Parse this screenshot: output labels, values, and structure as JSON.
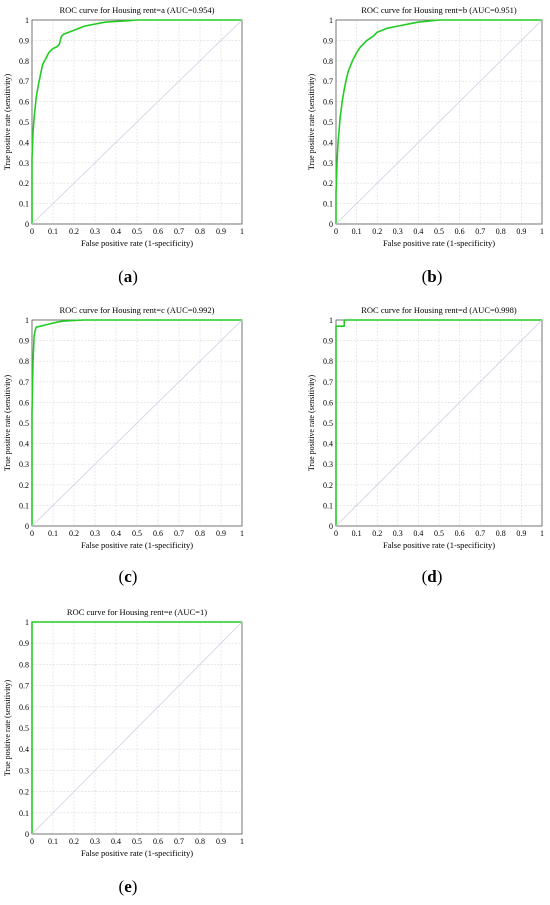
{
  "panels": [
    {
      "caption_open": "(",
      "caption_letter": "a",
      "caption_close": ")"
    },
    {
      "caption_open": "(",
      "caption_letter": "b",
      "caption_close": ")"
    },
    {
      "caption_open": "(",
      "caption_letter": "c",
      "caption_close": ")"
    },
    {
      "caption_open": "(",
      "caption_letter": "d",
      "caption_close": ")"
    },
    {
      "caption_open": "(",
      "caption_letter": "e",
      "caption_close": ")"
    }
  ],
  "colors": {
    "curve": "#22cc22",
    "diagonal": "#cfcfe6",
    "grid": "#d9d9d9",
    "axis": "#555555"
  },
  "chart_data": [
    {
      "type": "line",
      "title": "ROC curve for Housing rent=a (AUC=0.954)",
      "xlabel": "False positive rate (1-specificity)",
      "ylabel": "True positive rate (sensitivity)",
      "xlim": [
        0,
        1
      ],
      "ylim": [
        0,
        1
      ],
      "grid": true,
      "ticks": [
        "0",
        "0.1",
        "0.2",
        "0.3",
        "0.4",
        "0.5",
        "0.6",
        "0.7",
        "0.8",
        "0.9",
        "1"
      ],
      "series": [
        {
          "x": [
            0,
            0,
            0.005,
            0.01,
            0.015,
            0.02,
            0.03,
            0.04,
            0.05,
            0.06,
            0.08,
            0.1,
            0.12,
            0.13,
            0.14,
            0.15,
            0.2,
            0.25,
            0.3,
            0.35,
            0.4,
            0.45,
            0.5,
            1
          ],
          "y": [
            0,
            0.32,
            0.45,
            0.52,
            0.57,
            0.62,
            0.68,
            0.73,
            0.78,
            0.8,
            0.84,
            0.86,
            0.87,
            0.88,
            0.92,
            0.93,
            0.95,
            0.97,
            0.98,
            0.99,
            0.993,
            0.996,
            1,
            1
          ]
        },
        {
          "x": [
            0,
            1
          ],
          "y": [
            0,
            1
          ]
        }
      ]
    },
    {
      "type": "line",
      "title": "ROC curve for Housing rent=b (AUC=0.951)",
      "xlabel": "False positive rate (1-specificity)",
      "ylabel": "True positive rate (sensitivity)",
      "xlim": [
        0,
        1
      ],
      "ylim": [
        0,
        1
      ],
      "grid": true,
      "ticks": [
        "0",
        "0.1",
        "0.2",
        "0.3",
        "0.4",
        "0.5",
        "0.6",
        "0.7",
        "0.8",
        "0.9",
        "1"
      ],
      "series": [
        {
          "x": [
            0,
            0,
            0.005,
            0.01,
            0.02,
            0.03,
            0.04,
            0.05,
            0.06,
            0.08,
            0.1,
            0.12,
            0.15,
            0.18,
            0.2,
            0.25,
            0.3,
            0.35,
            0.4,
            0.45,
            0.5,
            0.6,
            1
          ],
          "y": [
            0,
            0.15,
            0.3,
            0.4,
            0.52,
            0.6,
            0.66,
            0.71,
            0.75,
            0.8,
            0.84,
            0.87,
            0.9,
            0.92,
            0.94,
            0.96,
            0.97,
            0.98,
            0.99,
            0.995,
            1,
            1,
            1
          ]
        },
        {
          "x": [
            0,
            1
          ],
          "y": [
            0,
            1
          ]
        }
      ]
    },
    {
      "type": "line",
      "title": "ROC curve for Housing rent=c (AUC=0.992)",
      "xlabel": "False positive rate (1-specificity)",
      "ylabel": "True positive rate (sensitivity)",
      "xlim": [
        0,
        1
      ],
      "ylim": [
        0,
        1
      ],
      "grid": true,
      "ticks": [
        "0",
        "0.1",
        "0.2",
        "0.3",
        "0.4",
        "0.5",
        "0.6",
        "0.7",
        "0.8",
        "0.9",
        "1"
      ],
      "series": [
        {
          "x": [
            0,
            0,
            0.005,
            0.01,
            0.015,
            0.02,
            0.04,
            0.06,
            0.08,
            0.1,
            0.12,
            0.15,
            0.2,
            0.25,
            0.3,
            1
          ],
          "y": [
            0,
            0.55,
            0.8,
            0.92,
            0.95,
            0.965,
            0.97,
            0.975,
            0.98,
            0.985,
            0.99,
            0.995,
            0.998,
            1,
            1,
            1
          ]
        },
        {
          "x": [
            0,
            1
          ],
          "y": [
            0,
            1
          ]
        }
      ]
    },
    {
      "type": "line",
      "title": "ROC curve for Housing rent=d (AUC=0.998)",
      "xlabel": "False positive rate (1-specificity)",
      "ylabel": "True positive rate (sensitivity)",
      "xlim": [
        0,
        1
      ],
      "ylim": [
        0,
        1
      ],
      "grid": true,
      "ticks": [
        "0",
        "0.1",
        "0.2",
        "0.3",
        "0.4",
        "0.5",
        "0.6",
        "0.7",
        "0.8",
        "0.9",
        "1"
      ],
      "series": [
        {
          "x": [
            0,
            0,
            0.04,
            0.04,
            1
          ],
          "y": [
            0,
            0.97,
            0.97,
            1,
            1
          ]
        },
        {
          "x": [
            0,
            1
          ],
          "y": [
            0,
            1
          ]
        }
      ]
    },
    {
      "type": "line",
      "title": "ROC curve for Housing rent=e (AUC=1)",
      "xlabel": "False positive rate (1-specificity)",
      "ylabel": "True positive rate (sensitivity)",
      "xlim": [
        0,
        1
      ],
      "ylim": [
        0,
        1
      ],
      "grid": true,
      "ticks": [
        "0",
        "0.1",
        "0.2",
        "0.3",
        "0.4",
        "0.5",
        "0.6",
        "0.7",
        "0.8",
        "0.9",
        "1"
      ],
      "series": [
        {
          "x": [
            0,
            0,
            1
          ],
          "y": [
            0,
            1,
            1
          ]
        },
        {
          "x": [
            0,
            1
          ],
          "y": [
            0,
            1
          ]
        }
      ]
    }
  ]
}
